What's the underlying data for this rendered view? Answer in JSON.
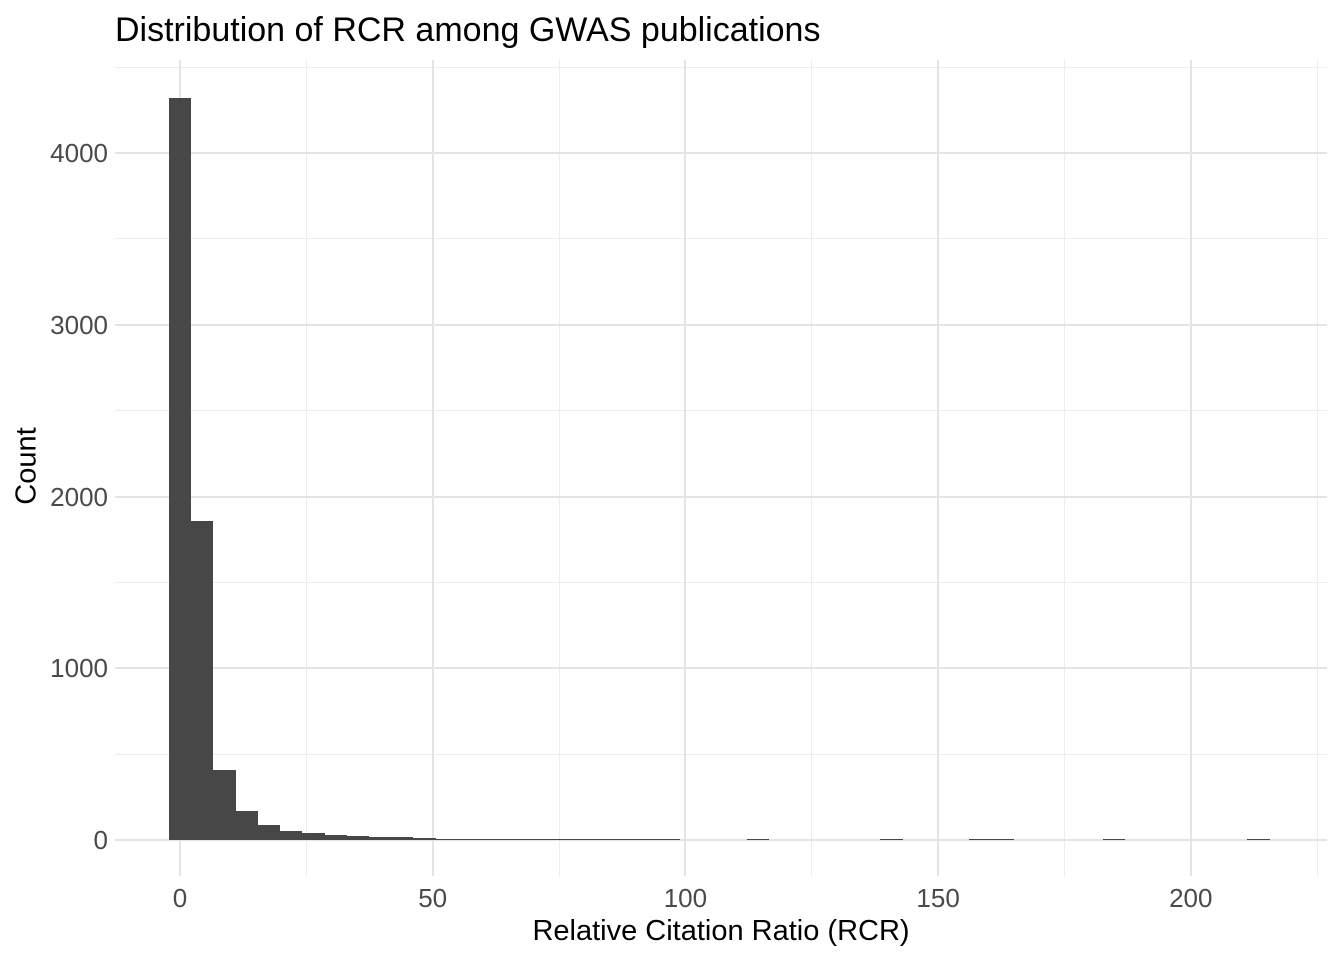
{
  "chart_data": {
    "type": "bar",
    "subtype": "histogram",
    "title": "Distribution of RCR among GWAS publications",
    "xlabel": "Relative Citation Ratio (RCR)",
    "ylabel": "Count",
    "x_ticks": [
      0,
      50,
      100,
      150,
      200
    ],
    "y_ticks": [
      0,
      1000,
      2000,
      3000,
      4000
    ],
    "xlim": [
      -13,
      227
    ],
    "ylim": [
      -215,
      4535
    ],
    "grid": "major and minor gridlines, light gray on white (ggplot theme_minimal), no axis lines or tick marks",
    "legend": "none",
    "bin_width": 4.4,
    "bars": [
      {
        "center": 0,
        "count": 4320
      },
      {
        "center": 4.4,
        "count": 1860
      },
      {
        "center": 8.8,
        "count": 410
      },
      {
        "center": 13.2,
        "count": 170
      },
      {
        "center": 17.6,
        "count": 90
      },
      {
        "center": 22,
        "count": 55
      },
      {
        "center": 26.4,
        "count": 42
      },
      {
        "center": 30.8,
        "count": 30
      },
      {
        "center": 35.2,
        "count": 25
      },
      {
        "center": 39.6,
        "count": 20
      },
      {
        "center": 44,
        "count": 16
      },
      {
        "center": 48.4,
        "count": 9
      },
      {
        "center": 52.8,
        "count": 6
      },
      {
        "center": 57.2,
        "count": 5
      },
      {
        "center": 61.6,
        "count": 3
      },
      {
        "center": 66,
        "count": 5
      },
      {
        "center": 70.4,
        "count": 4
      },
      {
        "center": 74.8,
        "count": 2
      },
      {
        "center": 79.2,
        "count": 2
      },
      {
        "center": 83.6,
        "count": 3
      },
      {
        "center": 88,
        "count": 1
      },
      {
        "center": 92.4,
        "count": 2
      },
      {
        "center": 96.8,
        "count": 3
      },
      {
        "center": 114.4,
        "count": 2
      },
      {
        "center": 140.8,
        "count": 2
      },
      {
        "center": 158.4,
        "count": 2
      },
      {
        "center": 162.8,
        "count": 2
      },
      {
        "center": 184.8,
        "count": 2
      },
      {
        "center": 213.4,
        "count": 2
      }
    ],
    "colors": {
      "bar_fill": "#474747",
      "grid_major": "#e4e4e4",
      "grid_minor": "#ededed",
      "axis_text": "#4a4a4a",
      "title_text": "#000000",
      "background": "#ffffff"
    }
  }
}
